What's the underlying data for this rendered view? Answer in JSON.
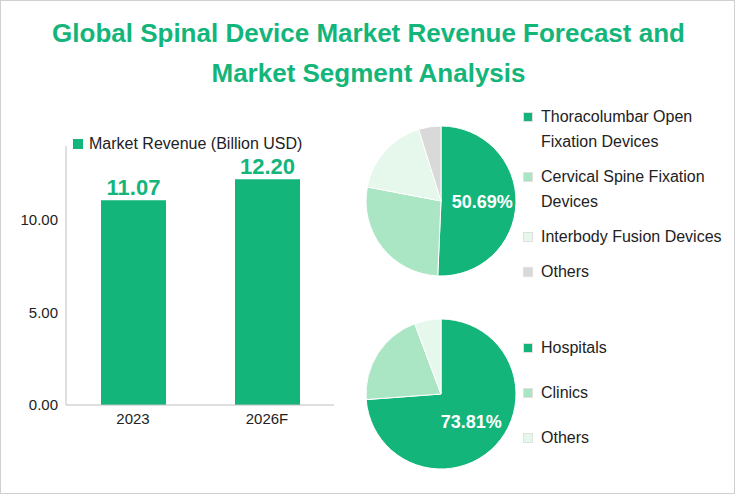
{
  "title": "Global Spinal Device Market Revenue Forecast and Market Segment Analysis",
  "chart_data": [
    {
      "type": "bar",
      "categories": [
        "2023",
        "2026F"
      ],
      "series": [
        {
          "name": "Market Revenue (Billion USD)",
          "color": "#13b57a",
          "values": [
            11.07,
            12.2
          ],
          "value_labels": [
            "11.07",
            "12.20"
          ]
        }
      ],
      "ylim": [
        0,
        14
      ],
      "yticks": [
        {
          "value": 0,
          "label": "0.00"
        },
        {
          "value": 5,
          "label": "5.00"
        },
        {
          "value": 10,
          "label": "10.00"
        }
      ],
      "data_labels": true,
      "legend": "top"
    },
    {
      "type": "pie",
      "categories": [
        "Thoracolumbar Open Fixation Devices",
        "Cervical Spine Fixation Devices",
        "Interbody Fusion Devices",
        "Others"
      ],
      "values": [
        50.69,
        27.31,
        17.2,
        4.8
      ],
      "colors": [
        "#13b57a",
        "#abe6c4",
        "#e6f7ec",
        "#d9d9d9"
      ],
      "value_labels": [
        "50.69%",
        null,
        null,
        null
      ],
      "data_labels": true,
      "legend": "right"
    },
    {
      "type": "pie",
      "categories": [
        "Hospitals",
        "Clinics",
        "Others"
      ],
      "values": [
        73.81,
        20.5,
        5.69
      ],
      "colors": [
        "#13b57a",
        "#abe6c4",
        "#e6f7ec"
      ],
      "value_labels": [
        "73.81%",
        null,
        null
      ],
      "data_labels": true,
      "legend": "right"
    }
  ]
}
